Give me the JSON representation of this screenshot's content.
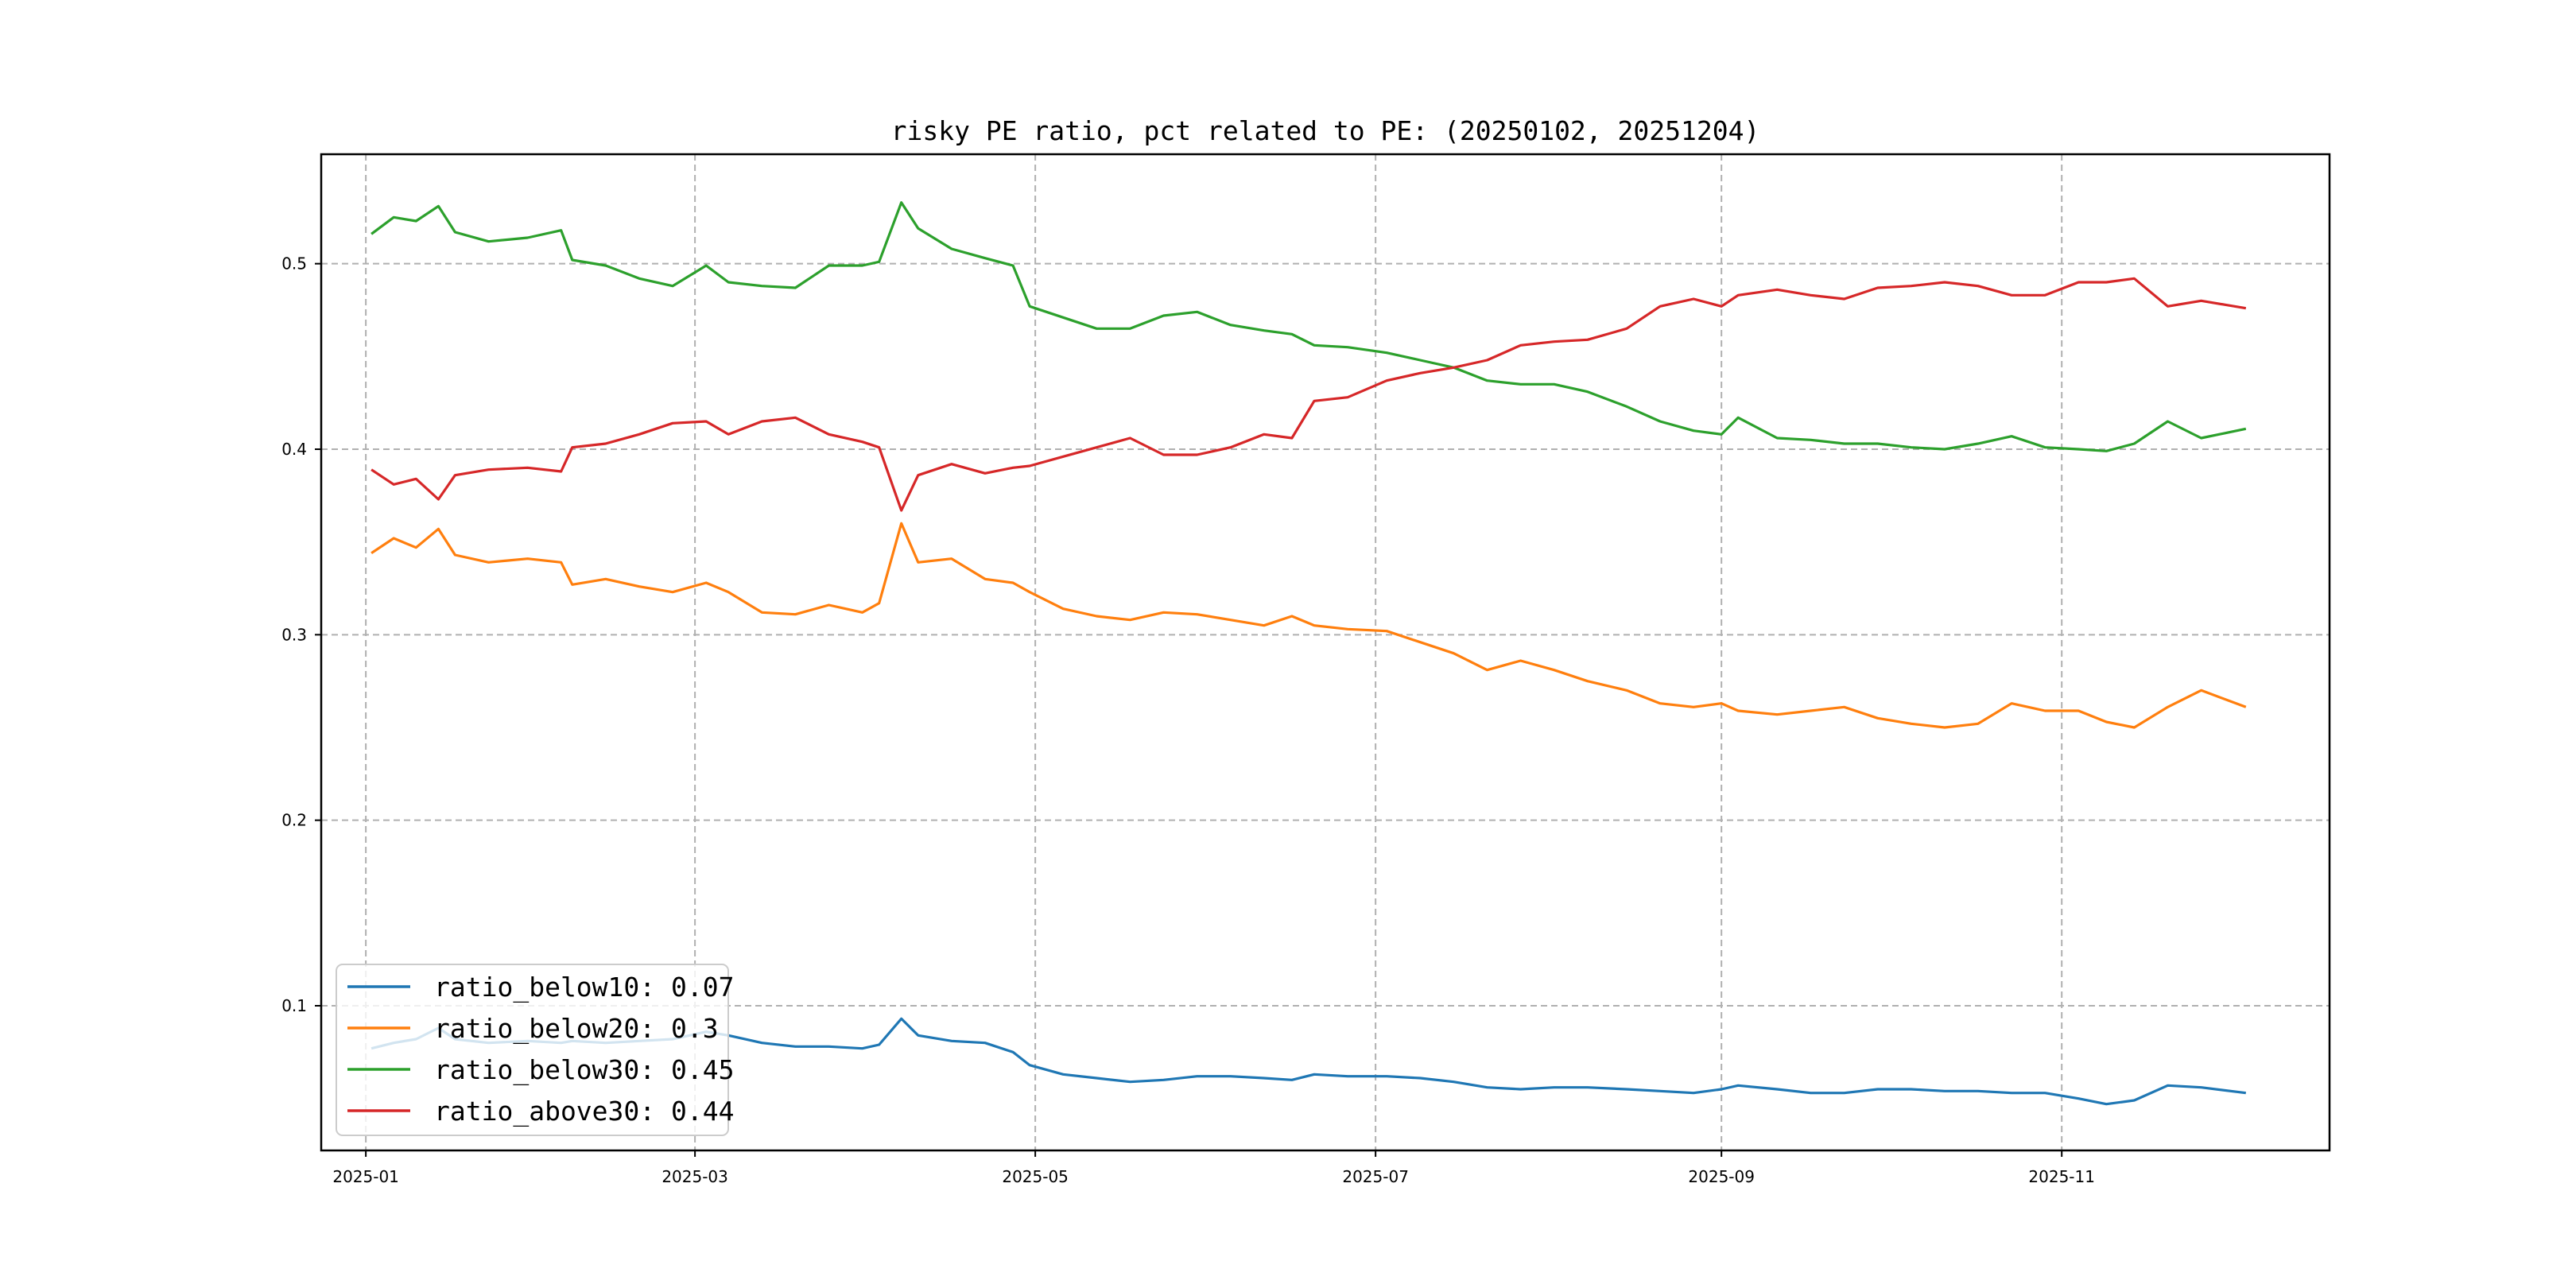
{
  "chart_data": {
    "type": "line",
    "title": "risky PE ratio, pct related to PE: (20250102, 20251204)",
    "xlabel": "",
    "ylabel": "",
    "ylim": [
      0.022,
      0.559
    ],
    "xlim": [
      "2024-12-24",
      "2025-12-19"
    ],
    "grid": true,
    "legend_position": "bottom-left",
    "x_ticks": [
      "2025-01",
      "2025-03",
      "2025-05",
      "2025-07",
      "2025-09",
      "2025-11"
    ],
    "y_ticks": [
      "0.1",
      "0.2",
      "0.3",
      "0.4",
      "0.5"
    ],
    "y_tick_values": [
      0.1,
      0.2,
      0.3,
      0.4,
      0.5
    ],
    "x": [
      "2025-01-02",
      "2025-01-06",
      "2025-01-10",
      "2025-01-14",
      "2025-01-17",
      "2025-01-23",
      "2025-01-30",
      "2025-02-05",
      "2025-02-07",
      "2025-02-13",
      "2025-02-19",
      "2025-02-25",
      "2025-03-03",
      "2025-03-07",
      "2025-03-13",
      "2025-03-19",
      "2025-03-25",
      "2025-03-31",
      "2025-04-03",
      "2025-04-07",
      "2025-04-10",
      "2025-04-16",
      "2025-04-22",
      "2025-04-27",
      "2025-04-30",
      "2025-05-06",
      "2025-05-12",
      "2025-05-18",
      "2025-05-24",
      "2025-05-30",
      "2025-06-05",
      "2025-06-11",
      "2025-06-16",
      "2025-06-20",
      "2025-06-26",
      "2025-07-03",
      "2025-07-09",
      "2025-07-15",
      "2025-07-21",
      "2025-07-27",
      "2025-08-02",
      "2025-08-08",
      "2025-08-15",
      "2025-08-21",
      "2025-08-27",
      "2025-09-01",
      "2025-09-04",
      "2025-09-11",
      "2025-09-17",
      "2025-09-23",
      "2025-09-29",
      "2025-10-05",
      "2025-10-11",
      "2025-10-17",
      "2025-10-23",
      "2025-10-29",
      "2025-11-04",
      "2025-11-09",
      "2025-11-14",
      "2025-11-20",
      "2025-11-26",
      "2025-12-04"
    ],
    "series": [
      {
        "name": "ratio_below10",
        "legend_label": "ratio_below10: 0.07",
        "color": "#1f77b4",
        "values": [
          0.077,
          0.08,
          0.082,
          0.088,
          0.082,
          0.08,
          0.081,
          0.08,
          0.081,
          0.08,
          0.081,
          0.082,
          0.086,
          0.084,
          0.08,
          0.078,
          0.078,
          0.077,
          0.079,
          0.093,
          0.084,
          0.081,
          0.08,
          0.075,
          0.068,
          0.063,
          0.061,
          0.059,
          0.06,
          0.062,
          0.062,
          0.061,
          0.06,
          0.063,
          0.062,
          0.062,
          0.061,
          0.059,
          0.056,
          0.055,
          0.056,
          0.056,
          0.055,
          0.054,
          0.053,
          0.055,
          0.057,
          0.055,
          0.053,
          0.053,
          0.055,
          0.055,
          0.054,
          0.054,
          0.053,
          0.053,
          0.05,
          0.047,
          0.049,
          0.057,
          0.056,
          0.053
        ]
      },
      {
        "name": "ratio_below20",
        "legend_label": "ratio_below20: 0.3",
        "color": "#ff7f0e",
        "values": [
          0.344,
          0.352,
          0.347,
          0.357,
          0.343,
          0.339,
          0.341,
          0.339,
          0.327,
          0.33,
          0.326,
          0.323,
          0.328,
          0.323,
          0.312,
          0.311,
          0.316,
          0.312,
          0.317,
          0.36,
          0.339,
          0.341,
          0.33,
          0.328,
          0.323,
          0.314,
          0.31,
          0.308,
          0.312,
          0.311,
          0.308,
          0.305,
          0.31,
          0.305,
          0.303,
          0.302,
          0.296,
          0.29,
          0.281,
          0.286,
          0.281,
          0.275,
          0.27,
          0.263,
          0.261,
          0.263,
          0.259,
          0.257,
          0.259,
          0.261,
          0.255,
          0.252,
          0.25,
          0.252,
          0.263,
          0.259,
          0.259,
          0.253,
          0.25,
          0.261,
          0.27,
          0.261
        ]
      },
      {
        "name": "ratio_below30",
        "legend_label": "ratio_below30: 0.45",
        "color": "#2ca02c",
        "values": [
          0.516,
          0.525,
          0.523,
          0.531,
          0.517,
          0.512,
          0.514,
          0.518,
          0.502,
          0.499,
          0.492,
          0.488,
          0.499,
          0.49,
          0.488,
          0.487,
          0.499,
          0.499,
          0.501,
          0.533,
          0.519,
          0.508,
          0.503,
          0.499,
          0.477,
          0.471,
          0.465,
          0.465,
          0.472,
          0.474,
          0.467,
          0.464,
          0.462,
          0.456,
          0.455,
          0.452,
          0.448,
          0.444,
          0.437,
          0.435,
          0.435,
          0.431,
          0.423,
          0.415,
          0.41,
          0.408,
          0.417,
          0.406,
          0.405,
          0.403,
          0.403,
          0.401,
          0.4,
          0.403,
          0.407,
          0.401,
          0.4,
          0.399,
          0.403,
          0.415,
          0.406,
          0.411
        ]
      },
      {
        "name": "ratio_above30",
        "legend_label": "ratio_above30: 0.44",
        "color": "#d62728",
        "values": [
          0.389,
          0.381,
          0.384,
          0.373,
          0.386,
          0.389,
          0.39,
          0.388,
          0.401,
          0.403,
          0.408,
          0.414,
          0.415,
          0.408,
          0.415,
          0.417,
          0.408,
          0.404,
          0.401,
          0.367,
          0.386,
          0.392,
          0.387,
          0.39,
          0.391,
          0.396,
          0.401,
          0.406,
          0.397,
          0.397,
          0.401,
          0.408,
          0.406,
          0.426,
          0.428,
          0.437,
          0.441,
          0.444,
          0.448,
          0.456,
          0.458,
          0.459,
          0.465,
          0.477,
          0.481,
          0.477,
          0.483,
          0.486,
          0.483,
          0.481,
          0.487,
          0.488,
          0.49,
          0.488,
          0.483,
          0.483,
          0.49,
          0.49,
          0.492,
          0.477,
          0.48,
          0.476
        ]
      }
    ]
  }
}
